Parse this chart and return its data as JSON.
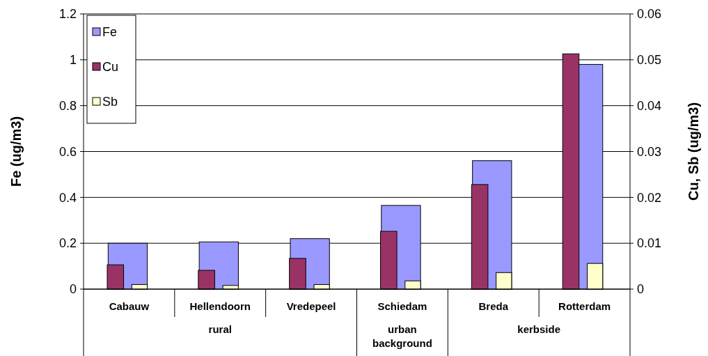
{
  "chart_data": {
    "type": "bar",
    "ylabel": "Fe (ug/m3)",
    "y2label": "Cu, Sb (ug/m3)",
    "categories": [
      "Cabauw",
      "Hellendoorn",
      "Vredepeel",
      "Schiedam",
      "Breda",
      "Rotterdam"
    ],
    "series": [
      {
        "name": "Fe",
        "color": "#9999ff",
        "values": [
          0.2,
          0.206,
          0.22,
          0.365,
          0.56,
          0.98
        ]
      },
      {
        "name": "Cu",
        "color": "#993366",
        "axis": "y2",
        "values": [
          0.0053,
          0.0041,
          0.0067,
          0.0126,
          0.0228,
          0.0513
        ]
      },
      {
        "name": "Sb",
        "color": "#ffffcc",
        "axis": "y2",
        "values": [
          0.001,
          0.0008,
          0.001,
          0.0018,
          0.0036,
          0.0056
        ]
      }
    ],
    "ylim": [
      0,
      1.2
    ],
    "yticks": [
      0,
      0.2,
      0.4,
      0.6,
      0.8,
      1,
      1.2
    ],
    "y2lim": [
      0,
      0.06
    ],
    "y2ticks": [
      0,
      0.01,
      0.02,
      0.03,
      0.04,
      0.05,
      0.06
    ],
    "annotations": [
      "rural",
      "urban background",
      "kerbside"
    ],
    "grid": "y",
    "legend": "top left"
  }
}
